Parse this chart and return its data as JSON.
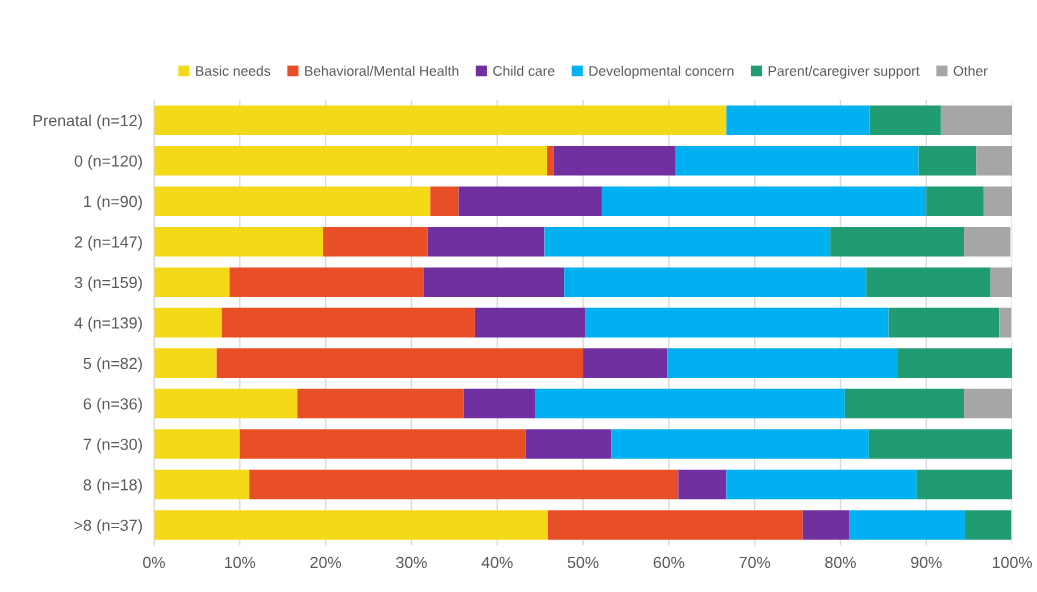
{
  "chart_data": {
    "type": "bar",
    "orientation": "horizontal",
    "stacked": true,
    "categories": [
      "Prenatal (n=12)",
      "0 (n=120)",
      "1 (n=90)",
      "2 (n=147)",
      "3 (n=159)",
      "4 (n=139)",
      "5 (n=82)",
      "6 (n=36)",
      "7 (n=30)",
      "8 (n=18)",
      ">8 (n=37)"
    ],
    "series": [
      {
        "name": "Basic needs",
        "color": "#f4d918",
        "values": [
          66.7,
          45.8,
          32.2,
          19.7,
          8.8,
          7.9,
          7.3,
          16.7,
          10.0,
          11.1,
          45.9
        ]
      },
      {
        "name": "Behavioral/Mental Health",
        "color": "#e94f26",
        "values": [
          0,
          0.8,
          3.3,
          12.2,
          22.6,
          29.5,
          42.7,
          19.4,
          33.3,
          50.0,
          29.7
        ]
      },
      {
        "name": "Child care",
        "color": "#7030a0",
        "values": [
          0,
          14.2,
          16.7,
          13.6,
          16.4,
          12.9,
          9.8,
          8.3,
          10.0,
          5.6,
          5.4
        ]
      },
      {
        "name": "Developmental concern",
        "color": "#00b0f0",
        "values": [
          16.7,
          28.3,
          37.8,
          33.3,
          35.2,
          35.3,
          26.8,
          36.1,
          30.0,
          22.2,
          13.5
        ]
      },
      {
        "name": "Parent/caregiver support",
        "color": "#219c72",
        "values": [
          8.3,
          6.7,
          6.7,
          15.6,
          14.5,
          12.9,
          13.4,
          13.9,
          16.7,
          11.1,
          5.4
        ]
      },
      {
        "name": "Other",
        "color": "#a6a6a6",
        "values": [
          8.3,
          4.2,
          3.3,
          5.4,
          2.5,
          1.4,
          0,
          5.6,
          0,
          0,
          0
        ]
      }
    ],
    "xlim": [
      0,
      100
    ],
    "xticks": [
      {
        "value": 0,
        "label": "0%"
      },
      {
        "value": 10,
        "label": "10%"
      },
      {
        "value": 20,
        "label": "20%"
      },
      {
        "value": 30,
        "label": "30%"
      },
      {
        "value": 40,
        "label": "40%"
      },
      {
        "value": 50,
        "label": "50%"
      },
      {
        "value": 60,
        "label": "60%"
      },
      {
        "value": 70,
        "label": "70%"
      },
      {
        "value": 80,
        "label": "80%"
      },
      {
        "value": 90,
        "label": "90%"
      },
      {
        "value": 100,
        "label": "100%"
      }
    ],
    "grid": "x",
    "legend": "top"
  }
}
